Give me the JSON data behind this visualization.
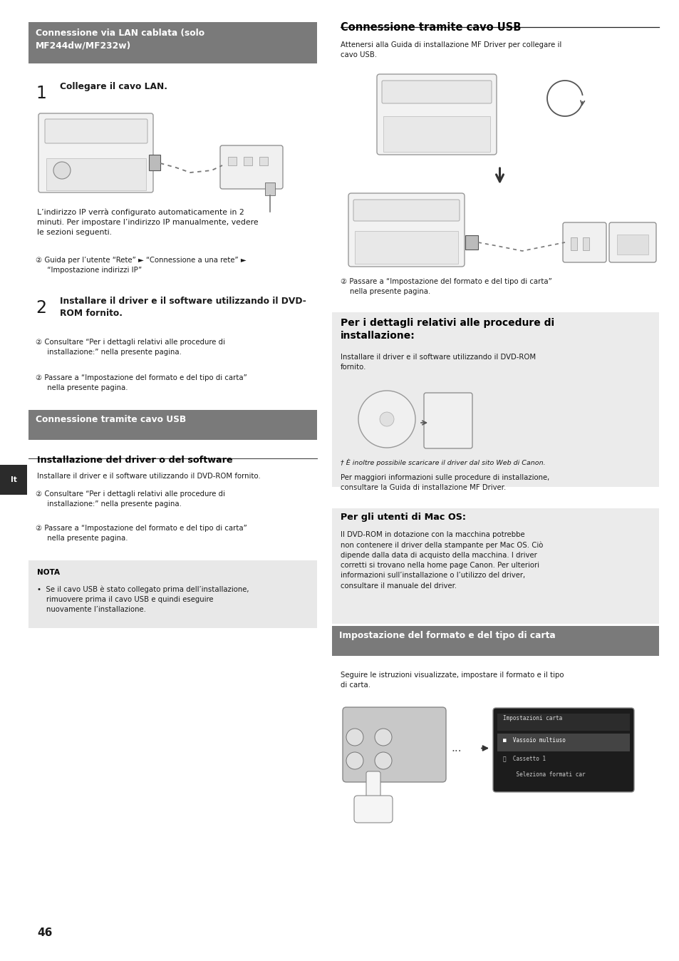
{
  "page_number": "46",
  "background_color": "#ffffff",
  "page_width": 9.54,
  "page_height": 13.48,
  "left_tab_label": "It",
  "left_tab_bg": "#2b2b2b",
  "left_tab_color": "#ffffff",
  "section1_header_bg": "#7a7a7a",
  "section1_header_text": "Connessione via LAN cablata (solo\nMF244dw/MF232w)",
  "section1_header_color": "#ffffff",
  "step1_number": "1",
  "step1_text": "Collegare il cavo LAN.",
  "step1_body1": "L’indirizzo IP verrà configurato automaticamente in 2\nminuti. Per impostare l’indirizzo IP manualmente, vedere\nle sezioni seguenti.",
  "step1_ref1": "② Guida per l’utente “Rete” ► “Connessione a una rete” ►\n     “Impostazione indirizzi IP”",
  "step2_number": "2",
  "step2_text": "Installare il driver e il software utilizzando il DVD-\nROM fornito.",
  "step2_ref1": "② Consultare “Per i dettagli relativi alle procedure di\n     installazione:” nella presente pagina.",
  "step2_ref2": "② Passare a “Impostazione del formato e del tipo di carta”\n     nella presente pagina.",
  "section2_header_bg": "#7a7a7a",
  "section2_header_text": "Connessione tramite cavo USB",
  "section2_header_color": "#ffffff",
  "subsec2_title": "Installazione del driver o del software",
  "subsec2_body": "Installare il driver e il software utilizzando il DVD-ROM fornito.",
  "subsec2_ref1": "② Consultare “Per i dettagli relativi alle procedure di\n     installazione:” nella presente pagina.",
  "subsec2_ref2": "② Passare a “Impostazione del formato e del tipo di carta”\n     nella presente pagina.",
  "nota_header": "NOTA",
  "nota_body": "•  Se il cavo USB è stato collegato prima dell’installazione,\n    rimuovere prima il cavo USB e quindi eseguire\n    nuovamente l’installazione.",
  "right_sec1_title": "Connessione tramite cavo USB",
  "right_sec1_body": "Attenersi alla Guida di installazione MF Driver per collegare il\ncavo USB.",
  "right_sec1_ref": "② Passare a “Impostazione del formato e del tipo di carta”\n    nella presente pagina.",
  "right_sec2_title": "Per i dettagli relativi alle procedure di\ninstallazione:",
  "right_sec2_bg": "#ebebeb",
  "right_sec2_body": "Installare il driver e il software utilizzando il DVD-ROM\nfornito.",
  "right_sec2_footnote": "† È inoltre possibile scaricare il driver dal sito Web di Canon.",
  "right_sec2_body2": "Per maggiori informazioni sulle procedure di installazione,\nconsultare la Guida di installazione MF Driver.",
  "right_sec3_title": "Per gli utenti di Mac OS:",
  "right_sec3_bg": "#ebebeb",
  "right_sec3_body": "Il DVD-ROM in dotazione con la macchina potrebbe\nnon contenere il driver della stampante per Mac OS. Ciò\ndipende dalla data di acquisto della macchina. I driver\ncorretti si trovano nella home page Canon. Per ulteriori\ninformazioni sull’installazione o l’utilizzo del driver,\nconsultare il manuale del driver.",
  "right_sec4_header_bg": "#7a7a7a",
  "right_sec4_header_text": "Impostazione del formato e del tipo di carta",
  "right_sec4_header_color": "#ffffff",
  "right_sec4_body": "Seguire le istruzioni visualizzate, impostare il formato e il tipo\ndi carta.",
  "text_color": "#1a1a1a",
  "bold_color": "#000000",
  "note_bg": "#e8e8e8"
}
